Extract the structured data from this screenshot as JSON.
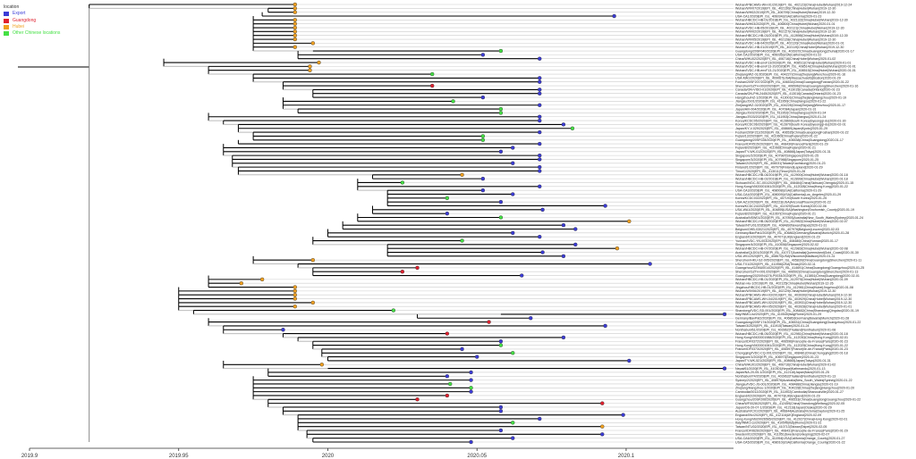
{
  "legend": {
    "title": "location",
    "items": [
      {
        "label": "Export",
        "color": "#3b3bd6"
      },
      {
        "label": "Guangdong",
        "color": "#e0202e"
      },
      {
        "label": "Hubei",
        "color": "#f0a020"
      },
      {
        "label": "Other Chinese locations",
        "color": "#44e044"
      }
    ]
  },
  "axis": {
    "ticks": [
      2019.9,
      2019.95,
      2020,
      2020.05,
      2020.1
    ],
    "tick_labels": [
      "2019.9",
      "2019.95",
      "2020",
      "2020.05",
      "2020.1"
    ],
    "range": [
      2019.9,
      2020.136
    ]
  },
  "tips": [
    [
      "Wuhan/IPBCAMS-WH-01/2019|EPI_ISL_402123|China|Hubei|Wuhan|2019-12-24",
      2019.989,
      2019.92,
      "Hubei"
    ],
    [
      "Wuhan/WIV07/2019|EPI_ISL_402130|China|Hubei|Wuhan|2019-12-30",
      2019.989,
      2019.98,
      "Hubei"
    ],
    [
      "Wuhan/WH02/2019|EPI_ISL_406799|China|Hubei|Wuhan|2019-12-30",
      2019.989,
      2019.98,
      "Hubei"
    ],
    [
      "USA-CA1/2020|EPI_ISL_406034|USA|California|2020-01-23",
      2020.096,
      2019.978,
      "Export"
    ],
    [
      "Wuhan/HBCDC-HB-01/2019|EPI_ISL_402132|China|Hubei|Wuhan|2019-12-30",
      2019.989,
      2019.975,
      "Hubei"
    ],
    [
      "Wuhan/WH03/2020|EPI_ISL_406800|China|Hubei|Wuhan|2020-01-01",
      2019.989,
      2019.975,
      "Hubei"
    ],
    [
      "Wuhan/IVDC-HB-05/2019|EPI_ISL_402121|China|Hubei|Wuhan|2019-12-30",
      2019.989,
      2019.975,
      "Hubei"
    ],
    [
      "Wuhan/WIV02/2019|EPI_ISL_402127|China|Hubei|Wuhan|2019-12-30",
      2019.989,
      2019.975,
      "Hubei"
    ],
    [
      "Wuhan/HBCDC-HB-03/2019|EPI_ISL_412898|China|Hubei|Wuhan|2019-12-30",
      2019.989,
      2019.975,
      "Hubei"
    ],
    [
      "Wuhan/WIV05/2019|EPI_ISL_402128|China|Hubei|Wuhan|2019-12-30",
      2019.989,
      2019.975,
      "Hubei"
    ],
    [
      "Wuhan/IVDC-HB-04/2020|EPI_ISL_402120|China|Hubei|Wuhan|2020-01-01",
      2019.995,
      2019.975,
      "Hubei"
    ],
    [
      "Wuhan/IVDC-HB-01/2019|EPI_ISL_402119|China|Hubei|Wuhan|2019-12-30",
      2019.989,
      2019.975,
      "Hubei"
    ],
    [
      "Guangdong/20SF040/2020|EPI_ISL_403937|China|Guangdong|Zhuhai|2020-01-17",
      2020.058,
      2019.995,
      "Other Chinese locations"
    ],
    [
      "USA-CA2/2020|EPI_ISL_406036|USA|California|2020-01-22",
      2020.052,
      2019.99,
      "Export"
    ],
    [
      "China/WHU02/2020|EPI_ISL_406716|China|Hubei|Wuhan|2020-01-02",
      2020.071,
      2019.99,
      "Export"
    ],
    [
      "Wuhan/IVDC-HB-envF13/2020|EPI_ISL_408511|China|Hubei|Wuhan|2020-01-01",
      2019.997,
      2019.945,
      "Hubei"
    ],
    [
      "Wuhan/IVDC-HB-envF13-20/2020|EPI_ISL_408514|China|Hubei|Wuhan|2020-01-01",
      2019.994,
      2019.96,
      "Hubei"
    ],
    [
      "Wuhan/IVDC-HB-envF13-21/2020|EPI_ISL_408515|China|Hubei|Wuhan|2020-01-01",
      2019.994,
      2019.96,
      "Hubei"
    ],
    [
      "Zhejiang/WZ-01/2020|EPI_ISL_404227|China|Zhejiang|Wenzhou|2020-01-16",
      2020.035,
      2019.975,
      "Other Chinese locations"
    ],
    [
      "USA-MA1/2020|EPI_ISL_409067|USA|Massachusetts|Boston|2020-01-29",
      2020.071,
      2019.975,
      "Export"
    ],
    [
      "Foshan/20SF207/2020|EPI_ISL_406534|China|Guangdong|Foshan|2020-01-22",
      2020.071,
      2019.985,
      "Export"
    ],
    [
      "Shenzhen/SZTH-003/2020|EPI_ISL_406596|China|Guangdong|Shenzhen|2020-01-16",
      2020.035,
      2019.985,
      "Guangdong"
    ],
    [
      "Canada/ON-VIDO-01/2020|EPI_ISL_413015|Canada|Ontario|2020-01-23",
      2020.071,
      2019.995,
      "Export"
    ],
    [
      "Canada/ON-PHL2445/2020|EPI_ISL_413016|Canada|Ontario|2020-01-23",
      2020.071,
      2019.995,
      "Export"
    ],
    [
      "Hangzhou/HZ-1/2020|EPI_ISL_413001|China|Zhejiang|Hangzhou|2020-01-19",
      2020.052,
      2019.995,
      "Export"
    ],
    [
      "Jiangsu/JS01/2020|EPI_ISL_411950|China|Jiangsu|2020-01-22",
      2020.042,
      2019.985,
      "Other Chinese locations"
    ],
    [
      "Zhejiang/WZ-02/2020|EPI_ISL_404228|China|Zhejiang|Wenzhou|2020-01-17",
      2020.071,
      2019.985,
      "Export"
    ],
    [
      "Japan/AI/I-004/2020|EPI_ISL_407084|Japan|2020-01-31",
      2020.058,
      2019.99,
      "Other Chinese locations"
    ],
    [
      "Jiangsu/JS02/2020|EPI_ISL_411952|China|Jiangsu|2020-01-24",
      2020.058,
      2019.99,
      "Other Chinese locations"
    ],
    [
      "Jiangsu/JS03/2020|EPI_ISL_411953|China|Jiangsu|2020-01-24",
      2020.071,
      2019.96,
      "Export"
    ],
    [
      "Korea/KCDC05/2020|EPI_ISL_412869|South Korea|Gyeonggi-do|2020-01-30",
      2020.071,
      2019.965,
      "Export"
    ],
    [
      "Korea/KCDC06/2020|EPI_ISL_412870|South Korea|Gyeonggi-do|2020-02-01",
      2020.079,
      2019.97,
      "Export"
    ],
    [
      "Japan/KY-V-029/2020|EPI_ISL_408669|Japan|Kyoto|2020-01-29",
      2020.082,
      2019.97,
      "Other Chinese locations"
    ],
    [
      "Foshan/20SF211/2020|EPI_ISL_406535|China|Guangdong|Foshan|2020-01-22",
      2020.071,
      2019.975,
      "Export"
    ],
    [
      "Fujian/13/2020|EPI_ISL_411060|China|Fujian|2020-01-22",
      2020.052,
      2019.975,
      "Other Chinese locations"
    ],
    [
      "Guangdong/20SF028/2020|EPI_ISL_406538|China|Guangdong|2020-01-17",
      2020.052,
      2019.975,
      "Other Chinese locations"
    ],
    [
      "France/IDF0515/2020|EPI_ISL_408430|France|Paris|2020-01-29",
      2020.071,
      2019.97,
      "Export"
    ],
    [
      "Fujian/8/2020|EPI_ISL_411066|China|Fujian|2020-01-21",
      2020.062,
      2019.965,
      "Export"
    ],
    [
      "Japan/TY-WK-012/2020|EPI_ISL_408666|Japan|Tokyo|2020-01-31",
      2020.058,
      2019.965,
      "Export"
    ],
    [
      "Singapore/2/2020|EPI_ISL_407987|Singapore|2020-01-25",
      2020.071,
      2019.968,
      "Export"
    ],
    [
      "Singapore/3/2020|EPI_ISL_407988|Singapore|2020-01-25",
      2020.071,
      2019.968,
      "Export"
    ],
    [
      "Taiwan/2/2020|EPI_ISL_406031|Taiwan|Kaohsiung|2020-01-23",
      2020.062,
      2019.968,
      "Export"
    ],
    [
      "Finland/1/2020|EPI_ISL_407079|Finland|Lapland|2020-01-29",
      2020.071,
      2019.97,
      "Export"
    ],
    [
      "Timor/1/2020|EPI_ISL_413011|Timor|2020-01-28",
      2020.071,
      2019.97,
      "Export"
    ],
    [
      "Wuhan/HBCDC-HB-04/2019|EPI_ISL_412900|China|Hubei|Wuhan|2020-01-18",
      2020.045,
      2020.015,
      "Hubei"
    ],
    [
      "Wuhan/HBCDC-HB-02/2019|EPI_ISL_412899|China|Hubei|Wuhan|2020-01-18",
      2020.052,
      2020.015,
      "Export"
    ],
    [
      "Sichuan/IVDC-SC-001/2020|EPI_ISL_408484|China|Sichuan|Chengdu|2020-01-15",
      2020.025,
      2020.01,
      "Other Chinese locations"
    ],
    [
      "Hong Kong/VM20001061/2020|EPI_ISL_412028|China|Hong Kong|2020-01-22",
      2020.071,
      2020.01,
      "Export"
    ],
    [
      "USA-CA3/2020|EPI_ISL_408008|USA|California|2020-01-29",
      2020.052,
      2020.02,
      "Export"
    ],
    [
      "USA-CA4/2020|EPI_ISL_408009|USA|California|Los_Angeles|2020-01-29",
      2020.062,
      2020.02,
      "Export"
    ],
    [
      "Korea/KCDC03/2020|EPI_ISL_407193|South Korea|2020-01-25",
      2020.04,
      2020.02,
      "Other Chinese locations"
    ],
    [
      "USA-AZ1/2020|EPI_ISL_406223|USA|Arizona|Phoenix|2020-01-22",
      2020.058,
      2020.02,
      "Export"
    ],
    [
      "Korea/KCDC24/2020|EPI_ISL_411929|South Korea|2020-02-06",
      2020.093,
      2020.02,
      "Export"
    ],
    [
      "USA-WA1/2020|EPI_ISL_404895|USA|Washington|Snohomish_County|2020-01-19",
      2020.072,
      2020.015,
      "Export"
    ],
    [
      "Fujian/8/2020|EPI_ISL_411067|China|Fujian|2020-01-21",
      2020.04,
      2020.015,
      "Export"
    ],
    [
      "Australia/NSW01/2020|EPI_ISL_407893|Australia|New_South_Wales|Sydney|2020-01-24",
      2020.058,
      2020.01,
      "Other Chinese locations"
    ],
    [
      "Wuhan/HBCDC-HB-06/2020|EPI_ISL_412982|China|Hubei|Wuhan|2020-02-07",
      2020.101,
      2020.01,
      "Hubei"
    ],
    [
      "Taiwan/NTU01/2020|EPI_ISL_408489|Taiwan|Taipei|2020-01-31",
      2020.079,
      2020.005,
      "Export"
    ],
    [
      "Belgium/GHB-03021/2020|EPI_ISL_407976|Belgium|Leuven|2020-02-03",
      2020.083,
      2020.005,
      "Export"
    ],
    [
      "Germany/BavPat1/2020|EPI_ISL_406862|Germany|Bavaria|Munich|2020-01-28",
      2020.062,
      2020.0,
      "Export"
    ],
    [
      "England/01/2020|EPI_ISL_407071|UK|England|2020-01-29",
      2020.071,
      2020.0,
      "Export"
    ],
    [
      "Yunnan/IVDC-YN-003/2020|EPI_ISL_408480|China|Yunnan|2020-01-17",
      2020.045,
      2019.995,
      "Other Chinese locations"
    ],
    [
      "Singapore/4/2020|EPI_ISL_410536|Singapore|2020-02-02",
      2020.083,
      2020.02,
      "Export"
    ],
    [
      "Wuhan/HBCDC-HB-07/2020|EPI_ISL_412983|China|Hubei|Wuhan|2020-02-08",
      2020.097,
      2020.02,
      "Hubei"
    ],
    [
      "Australia/QLD01/2020|EPI_ISL_410717|Australia|Queensland|Gold_Coast|2020-01-30",
      2020.072,
      2020.02,
      "Export"
    ],
    [
      "USA-WI1/2020|EPI_ISL_408670|USA|Wisconsin|Madison|2020-01-31",
      2020.079,
      2020.02,
      "Export"
    ],
    [
      "Shenzhen/HKU-SZ-005/2020|EPI_ISL_405839|China|Guangdong|Shenzhen|2020-01-11",
      2019.995,
      2019.975,
      "Hubei"
    ],
    [
      "USA-TX1/2020|EPI_ISL_411956|USA|Texas|2020-02-11",
      2020.108,
      2019.99,
      "Export"
    ],
    [
      "Guangzhou/GZMU0014/2020|EPI_ISL_414691|China|Guangdong|Guangzhou|2020-01-25",
      2020.03,
      2019.995,
      "Guangdong"
    ],
    [
      "Shenzhen/SZTH-001/2020|EPI_ISL_406592|China|Guangdong|Shenzhen|2020-01-13",
      2020.025,
      2019.995,
      "Guangdong"
    ],
    [
      "Guangdong/2020XN4276-P0034/2020|EPI_ISL_413851|China|Guangdong|2020-02-01",
      2020.065,
      2019.995,
      "Export"
    ],
    [
      "Wuhan/HBCDC-HB-01/2020|EPI_ISL_412979|China|Hubei|Wuhan|2020-01-09",
      2019.978,
      2019.96,
      "Hubei"
    ],
    [
      "Wuhan-Hu-1/2019|EPI_ISL_402125|China|Hubei|Wuhan|2019-12-26",
      2019.971,
      2019.96,
      "Hubei"
    ],
    [
      "Jingzhou/HBCDC-HB-01/2020|EPI_ISL_412981|China|Hubei|Jingzhou|2020-01-08",
      2019.989,
      2019.96,
      "Hubei"
    ],
    [
      "Wuhan/WIV06/2019|EPI_ISL_402129|China|Hubei|Wuhan|2019-12-30",
      2019.989,
      2019.95,
      "Hubei"
    ],
    [
      "Wuhan/IPBCAMS-WH-03/2019|EPI_ISL_403930|China|Hubei|Wuhan|2019-12-30",
      2019.989,
      2019.95,
      "Hubei"
    ],
    [
      "Wuhan/IPBCAMS-WH-04/2019|EPI_ISL_403929|China|Hubei|Wuhan|2019-12-30",
      2019.989,
      2019.95,
      "Hubei"
    ],
    [
      "Wuhan/IPBCAMS-WH-02/2019|EPI_ISL_403931|China|Hubei|Wuhan|2019-12-30",
      2019.995,
      2019.95,
      "Hubei"
    ],
    [
      "Wuhan/IPBCAMS-WH-05/2020|EPI_ISL_403928|China|Hubei|Wuhan|2020-01-01",
      2019.989,
      2019.95,
      "Hubei"
    ],
    [
      "Shandong/IVDC-SD-001/2020|EPI_ISL_408482|China|Shandong|Qingdao|2020-01-19",
      2020.022,
      2019.955,
      "Other Chinese locations"
    ],
    [
      "Italy/INMI1-isl/2020|EPI_ISL_410545|Italy|Rome|2020-01-29",
      2020.133,
      2020.058,
      "Export"
    ],
    [
      "Germany/BavPat2/2020|EPI_ISL_406863|Germany|Bavaria|Munich|2020-01-28",
      2020.068,
      2020.03,
      "Export"
    ],
    [
      "Guangdong/20SF174/2020|EPI_ISL_406531|China|Guangdong|Guangzhou|2020-01-22",
      2020.054,
      2019.96,
      "Guangdong"
    ],
    [
      "Taiwan/3/2020|EPI_ISL_411915|Taiwan|2020-01-24",
      2020.093,
      2019.965,
      "Export"
    ],
    [
      "Nonthaburi/61/2020|EPI_ISL_403962|Thailand|Nonthaburi|2020-01-08",
      2019.985,
      2019.965,
      "Export"
    ],
    [
      "Wuhan/HBCDC-HB-05/2020|EPI_ISL_412981|China|Hubei|Wuhan|2020-01-18",
      2020.04,
      2019.985,
      "Guangdong"
    ],
    [
      "Hong Kong/VM20001988/2020|EPI_ISL_412030|China|Hong Kong|2020-02-01",
      2020.079,
      2019.99,
      "Export"
    ],
    [
      "France/IDF0372/2020|EPI_ISL_406596|France|Ile-de-France|Paris|2020-01-23",
      2020.058,
      2019.995,
      "Export"
    ],
    [
      "Hong Kong/VM20001061/2020|EPI_ISL_412029|China|Hong Kong|2020-01-22",
      2020.058,
      2019.995,
      "Other Chinese locations"
    ],
    [
      "France/IDF0373/2020|EPI_ISL_406597|France|Ile-de-France|Paris|2020-01-23",
      2020.045,
      2019.998,
      "Export"
    ],
    [
      "Chongqing/IVDC-CQ-001/2020|EPI_ISL_408481|China|Chongqing|2020-01-18",
      2020.062,
      2019.998,
      "Other Chinese locations"
    ],
    [
      "Singapore/1/2020|EPI_ISL_406973|Singapore|2020-01-23",
      2020.05,
      2020.0,
      "Export"
    ],
    [
      "Japan/TY-WK-521/2020|EPI_ISL_408665|Japan|Tokyo|2020-01-31",
      2020.101,
      2020.0,
      "Export"
    ],
    [
      "China/WHU01/2020|EPI_ISL_406716|China|Hubei|Wuhan|2020-01-02",
      2019.998,
      2019.965,
      "Hubei"
    ],
    [
      "Nepal/61/2020|EPI_ISL_410301|Nepal|Kathmandu|2020-01-13",
      2020.133,
      2020.0,
      "Export"
    ],
    [
      "Japan/NA-20-05-1/2020|EPI_ISL_412116|Japan|Nara|2020-01-25",
      2020.048,
      2019.98,
      "Export"
    ],
    [
      "Nonthaburi/74/2020|EPI_ISL_403963|Thailand|Nonthaburi|2020-01-13",
      2020.04,
      2019.98,
      "Export"
    ],
    [
      "Sydney/2/2020|EPI_ISL_408976|Australia|New_South_Wales|Sydney|2020-01-22",
      2020.048,
      2019.975,
      "Export"
    ],
    [
      "Jiangsu/IVDC-JS-001/2020|EPI_ISL_408488|China|Jiangsu|2020-01-19",
      2020.041,
      2019.975,
      "Other Chinese locations"
    ],
    [
      "Zhejiang/Hangzhou-1/2020|EPI_ISL_404228|China|Zhejiang|Hangzhou|2020-01-20",
      2020.048,
      2019.975,
      "Other Chinese locations"
    ],
    [
      "Cambodia/0012/2020|EPI_ISL_411902|Cambodia|Sihanoukville|2020-01-27",
      2020.048,
      2019.975,
      "Export"
    ],
    [
      "England/02/2020|EPI_ISL_407073|UK|England|2020-01-29",
      2020.04,
      2019.975,
      "Guangdong"
    ],
    [
      "Guangzhou/20SF206/2020|EPI_ISL_406533|China|Guangdong|Guangzhou|2020-01-22",
      2020.03,
      2019.98,
      "Guangdong"
    ],
    [
      "China/WF0028/2020|EPI_ISL_412459|China|Shandong|Weifang|2020-02-05",
      2020.092,
      2019.98,
      "Guangdong"
    ],
    [
      "Japan/OS-20-07-1/2020|EPI_ISL_412118|Japan|Osaka|2020-01-29",
      2020.058,
      2019.985,
      "Export"
    ],
    [
      "Australia/VIC01/2020|EPI_ISL_406844|Australia|Victoria|Clayton|2020-01-25",
      2020.058,
      2019.985,
      "Export"
    ],
    [
      "England/09c/2020|EPI_ISL_412116|UK|England|2020-02-09",
      2020.099,
      2019.99,
      "Export"
    ],
    [
      "Hong Kong/VB20026565/2020|EPI_ISL_412027|China|Hong Kong|2020-02-01",
      2020.071,
      2019.99,
      "Export"
    ],
    [
      "Italy/INMI1-cs/2020|EPI_ISL_410546|Italy|Rome|2020-01-31",
      2020.062,
      2019.99,
      "Other Chinese locations"
    ],
    [
      "Taiwan/NTU02/2020|EPI_ISL_410713|Taiwan|Taipei|2020-02-05",
      2020.092,
      2019.99,
      "Hubei"
    ],
    [
      "France/IDF0626/2020|EPI_ISL_408431|France|Ile-de-France|Paris|2020-01-29",
      2020.058,
      2019.993,
      "Export"
    ],
    [
      "Sweden/01/2020|EPI_ISL_411951|Sweden|Jonkoping|2020-02-07",
      2020.092,
      2019.993,
      "Export"
    ],
    [
      "USA-CA6/2020|EPI_ISL_411954|USA|California|Orange_County|2020-01-27",
      2020.062,
      2019.995,
      "Export"
    ],
    [
      "USA-CA5/2020|EPI_ISL_408010|USA|California|Orange_County|2020-01-22",
      2020.048,
      2019.995,
      "Export"
    ]
  ]
}
